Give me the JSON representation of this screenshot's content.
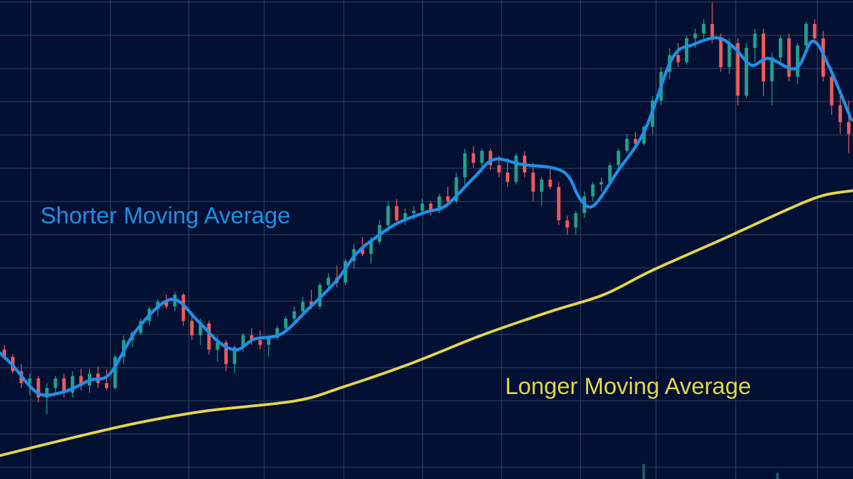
{
  "chart_data": {
    "type": "candlestick",
    "title": "",
    "xlabel": "",
    "ylabel": "",
    "xlim": [
      0,
      100
    ],
    "ylim": [
      0,
      100
    ],
    "grid": true,
    "colors": {
      "background": "#011033",
      "grid": "#2e3a55",
      "up": "#21a08a",
      "down": "#ef5a5a",
      "short_ma": "#1f8fe6",
      "long_ma": "#e3d64a"
    },
    "annotations": {
      "short_ma_label": "Shorter Moving Average",
      "long_ma_label": "Longer Moving Average"
    },
    "candles_ohlc": [
      [
        27,
        28,
        25,
        25.5
      ],
      [
        25.5,
        26,
        22,
        22.5
      ],
      [
        22.5,
        24,
        19,
        20
      ],
      [
        20,
        22,
        17.5,
        21
      ],
      [
        21,
        21.5,
        16,
        17
      ],
      [
        17,
        20,
        13.5,
        19
      ],
      [
        19,
        21.5,
        18,
        21
      ],
      [
        21,
        22,
        17,
        18
      ],
      [
        18,
        22.5,
        17,
        21.5
      ],
      [
        21.5,
        23,
        18.5,
        19.5
      ],
      [
        19.5,
        23,
        18,
        22
      ],
      [
        22,
        23.5,
        19,
        20
      ],
      [
        20,
        23,
        18.5,
        19
      ],
      [
        19,
        26,
        18.5,
        25.5
      ],
      [
        25.5,
        30,
        24,
        29
      ],
      [
        29,
        31,
        27.5,
        30.5
      ],
      [
        30.5,
        33.5,
        30,
        33
      ],
      [
        33,
        36,
        32,
        35.5
      ],
      [
        35.5,
        37.5,
        34,
        37
      ],
      [
        37,
        38.5,
        35.5,
        36
      ],
      [
        36,
        39,
        35,
        38.5
      ],
      [
        38.5,
        38.8,
        32,
        33
      ],
      [
        33,
        34.5,
        29,
        30
      ],
      [
        30,
        33.5,
        28,
        32.5
      ],
      [
        32.5,
        33,
        26,
        27
      ],
      [
        27,
        30,
        24.5,
        28.5
      ],
      [
        28.5,
        29,
        22.5,
        24
      ],
      [
        24,
        28,
        22,
        27.5
      ],
      [
        27.5,
        30.5,
        26.5,
        30
      ],
      [
        30,
        31.5,
        28,
        29
      ],
      [
        29,
        31,
        27,
        28
      ],
      [
        28,
        30,
        25.5,
        29.5
      ],
      [
        29.5,
        32,
        29,
        31.5
      ],
      [
        31.5,
        34,
        30.5,
        33.5
      ],
      [
        33.5,
        36,
        32.5,
        35
      ],
      [
        35,
        38,
        34,
        37
      ],
      [
        37,
        39.5,
        35.5,
        36
      ],
      [
        36,
        41,
        35.5,
        40.5
      ],
      [
        40.5,
        43,
        39,
        42
      ],
      [
        42,
        44.5,
        40,
        41
      ],
      [
        41,
        46,
        40.5,
        45.5
      ],
      [
        45.5,
        49,
        44,
        48
      ],
      [
        48,
        50.5,
        46.5,
        47
      ],
      [
        47,
        50.5,
        45,
        49.5
      ],
      [
        49.5,
        54,
        49,
        53
      ],
      [
        53,
        58,
        51.5,
        57
      ],
      [
        57,
        58.5,
        53,
        54
      ],
      [
        54,
        56.5,
        53,
        55.5
      ],
      [
        55.5,
        57,
        54,
        56
      ],
      [
        56,
        58.5,
        55,
        57.5
      ],
      [
        57.5,
        58,
        55,
        56
      ],
      [
        56,
        59.5,
        55.5,
        59
      ],
      [
        59,
        61,
        57,
        58
      ],
      [
        58,
        64,
        57.5,
        63
      ],
      [
        63,
        69,
        61,
        68
      ],
      [
        68,
        69.5,
        65,
        66
      ],
      [
        66,
        69,
        64,
        68.5
      ],
      [
        68.5,
        69,
        64.5,
        65.5
      ],
      [
        65.5,
        67.5,
        63,
        64
      ],
      [
        64,
        67,
        61,
        62
      ],
      [
        62,
        68,
        61.5,
        67.5
      ],
      [
        67.5,
        68.5,
        63,
        64
      ],
      [
        64,
        66,
        58,
        60
      ],
      [
        60,
        63,
        57,
        62.5
      ],
      [
        62.5,
        65,
        60.5,
        61
      ],
      [
        61,
        62,
        53,
        54
      ],
      [
        54,
        55,
        51,
        52.5
      ],
      [
        52.5,
        56,
        51,
        55.5
      ],
      [
        55.5,
        60,
        54.5,
        59
      ],
      [
        59,
        62,
        58,
        61.5
      ],
      [
        61.5,
        63,
        60,
        62
      ],
      [
        62,
        66,
        61.5,
        65.5
      ],
      [
        65.5,
        69,
        64.5,
        68.5
      ],
      [
        68.5,
        72,
        68,
        71
      ],
      [
        71,
        72.5,
        69,
        70
      ],
      [
        70,
        74,
        69.5,
        73.5
      ],
      [
        73.5,
        80,
        72,
        79
      ],
      [
        79,
        86,
        78,
        85
      ],
      [
        85,
        90,
        83.5,
        88.5
      ],
      [
        88.5,
        91,
        86,
        87
      ],
      [
        87,
        92.5,
        86.5,
        92
      ],
      [
        92,
        94,
        90,
        93
      ],
      [
        93,
        96,
        92,
        95
      ],
      [
        95,
        99.5,
        91,
        92
      ],
      [
        92,
        93,
        85,
        86
      ],
      [
        86,
        92,
        84.5,
        91
      ],
      [
        91,
        92,
        78,
        80
      ],
      [
        80,
        91,
        79.5,
        90
      ],
      [
        90,
        94,
        87,
        93
      ],
      [
        93,
        94,
        80,
        83
      ],
      [
        83,
        89,
        78,
        88
      ],
      [
        88,
        92.5,
        86.5,
        92
      ],
      [
        92,
        93,
        83,
        84
      ],
      [
        84,
        91,
        82.5,
        90.5
      ],
      [
        90.5,
        95.5,
        89.5,
        95
      ],
      [
        95,
        96,
        91,
        92
      ],
      [
        92,
        93.5,
        83,
        84
      ],
      [
        84,
        86,
        76,
        78
      ],
      [
        78,
        80,
        72,
        74.5
      ],
      [
        74.5,
        79,
        68,
        72
      ]
    ],
    "series": [
      {
        "name": "Shorter Moving Average",
        "x": [
          0,
          1.6,
          3.6,
          5.2,
          8,
          10.5,
          12.9,
          16.1,
          20.1,
          23.3,
          25.7,
          27.8,
          29.8,
          33,
          36.2,
          39.4,
          41.8,
          44.2,
          46.7,
          49.9,
          52.3,
          55.5,
          57.9,
          61.1,
          66,
          68,
          69.6,
          72.4,
          75.6,
          78.8,
          81.3,
          84.1,
          86.1,
          88.1,
          90.1,
          93.3,
          95.3,
          97.3,
          99.8
        ],
        "y": [
          26.3,
          23.5,
          19.2,
          17.5,
          18.5,
          20.6,
          22.0,
          31.3,
          37.5,
          32.8,
          28.5,
          27.0,
          29.2,
          30.3,
          35.6,
          41.3,
          47.1,
          50.6,
          53.5,
          55.7,
          57.1,
          62.8,
          66.7,
          65.7,
          64.2,
          58.5,
          57.1,
          64.2,
          72.8,
          87.8,
          90.7,
          92.1,
          90,
          86.4,
          87.8,
          85.7,
          91.4,
          85.7,
          75
        ]
      },
      {
        "name": "Longer Moving Average",
        "x": [
          0,
          8,
          16.1,
          24.1,
          34.6,
          40.2,
          48.3,
          56.3,
          64.4,
          70.8,
          76.4,
          84.5,
          92.5,
          96.5,
          100
        ],
        "y": [
          4.9,
          8.4,
          11.7,
          14.2,
          16.3,
          19.2,
          24.2,
          29.9,
          34.9,
          38.5,
          43.5,
          49.9,
          56.4,
          59.2,
          60.2
        ]
      }
    ]
  }
}
